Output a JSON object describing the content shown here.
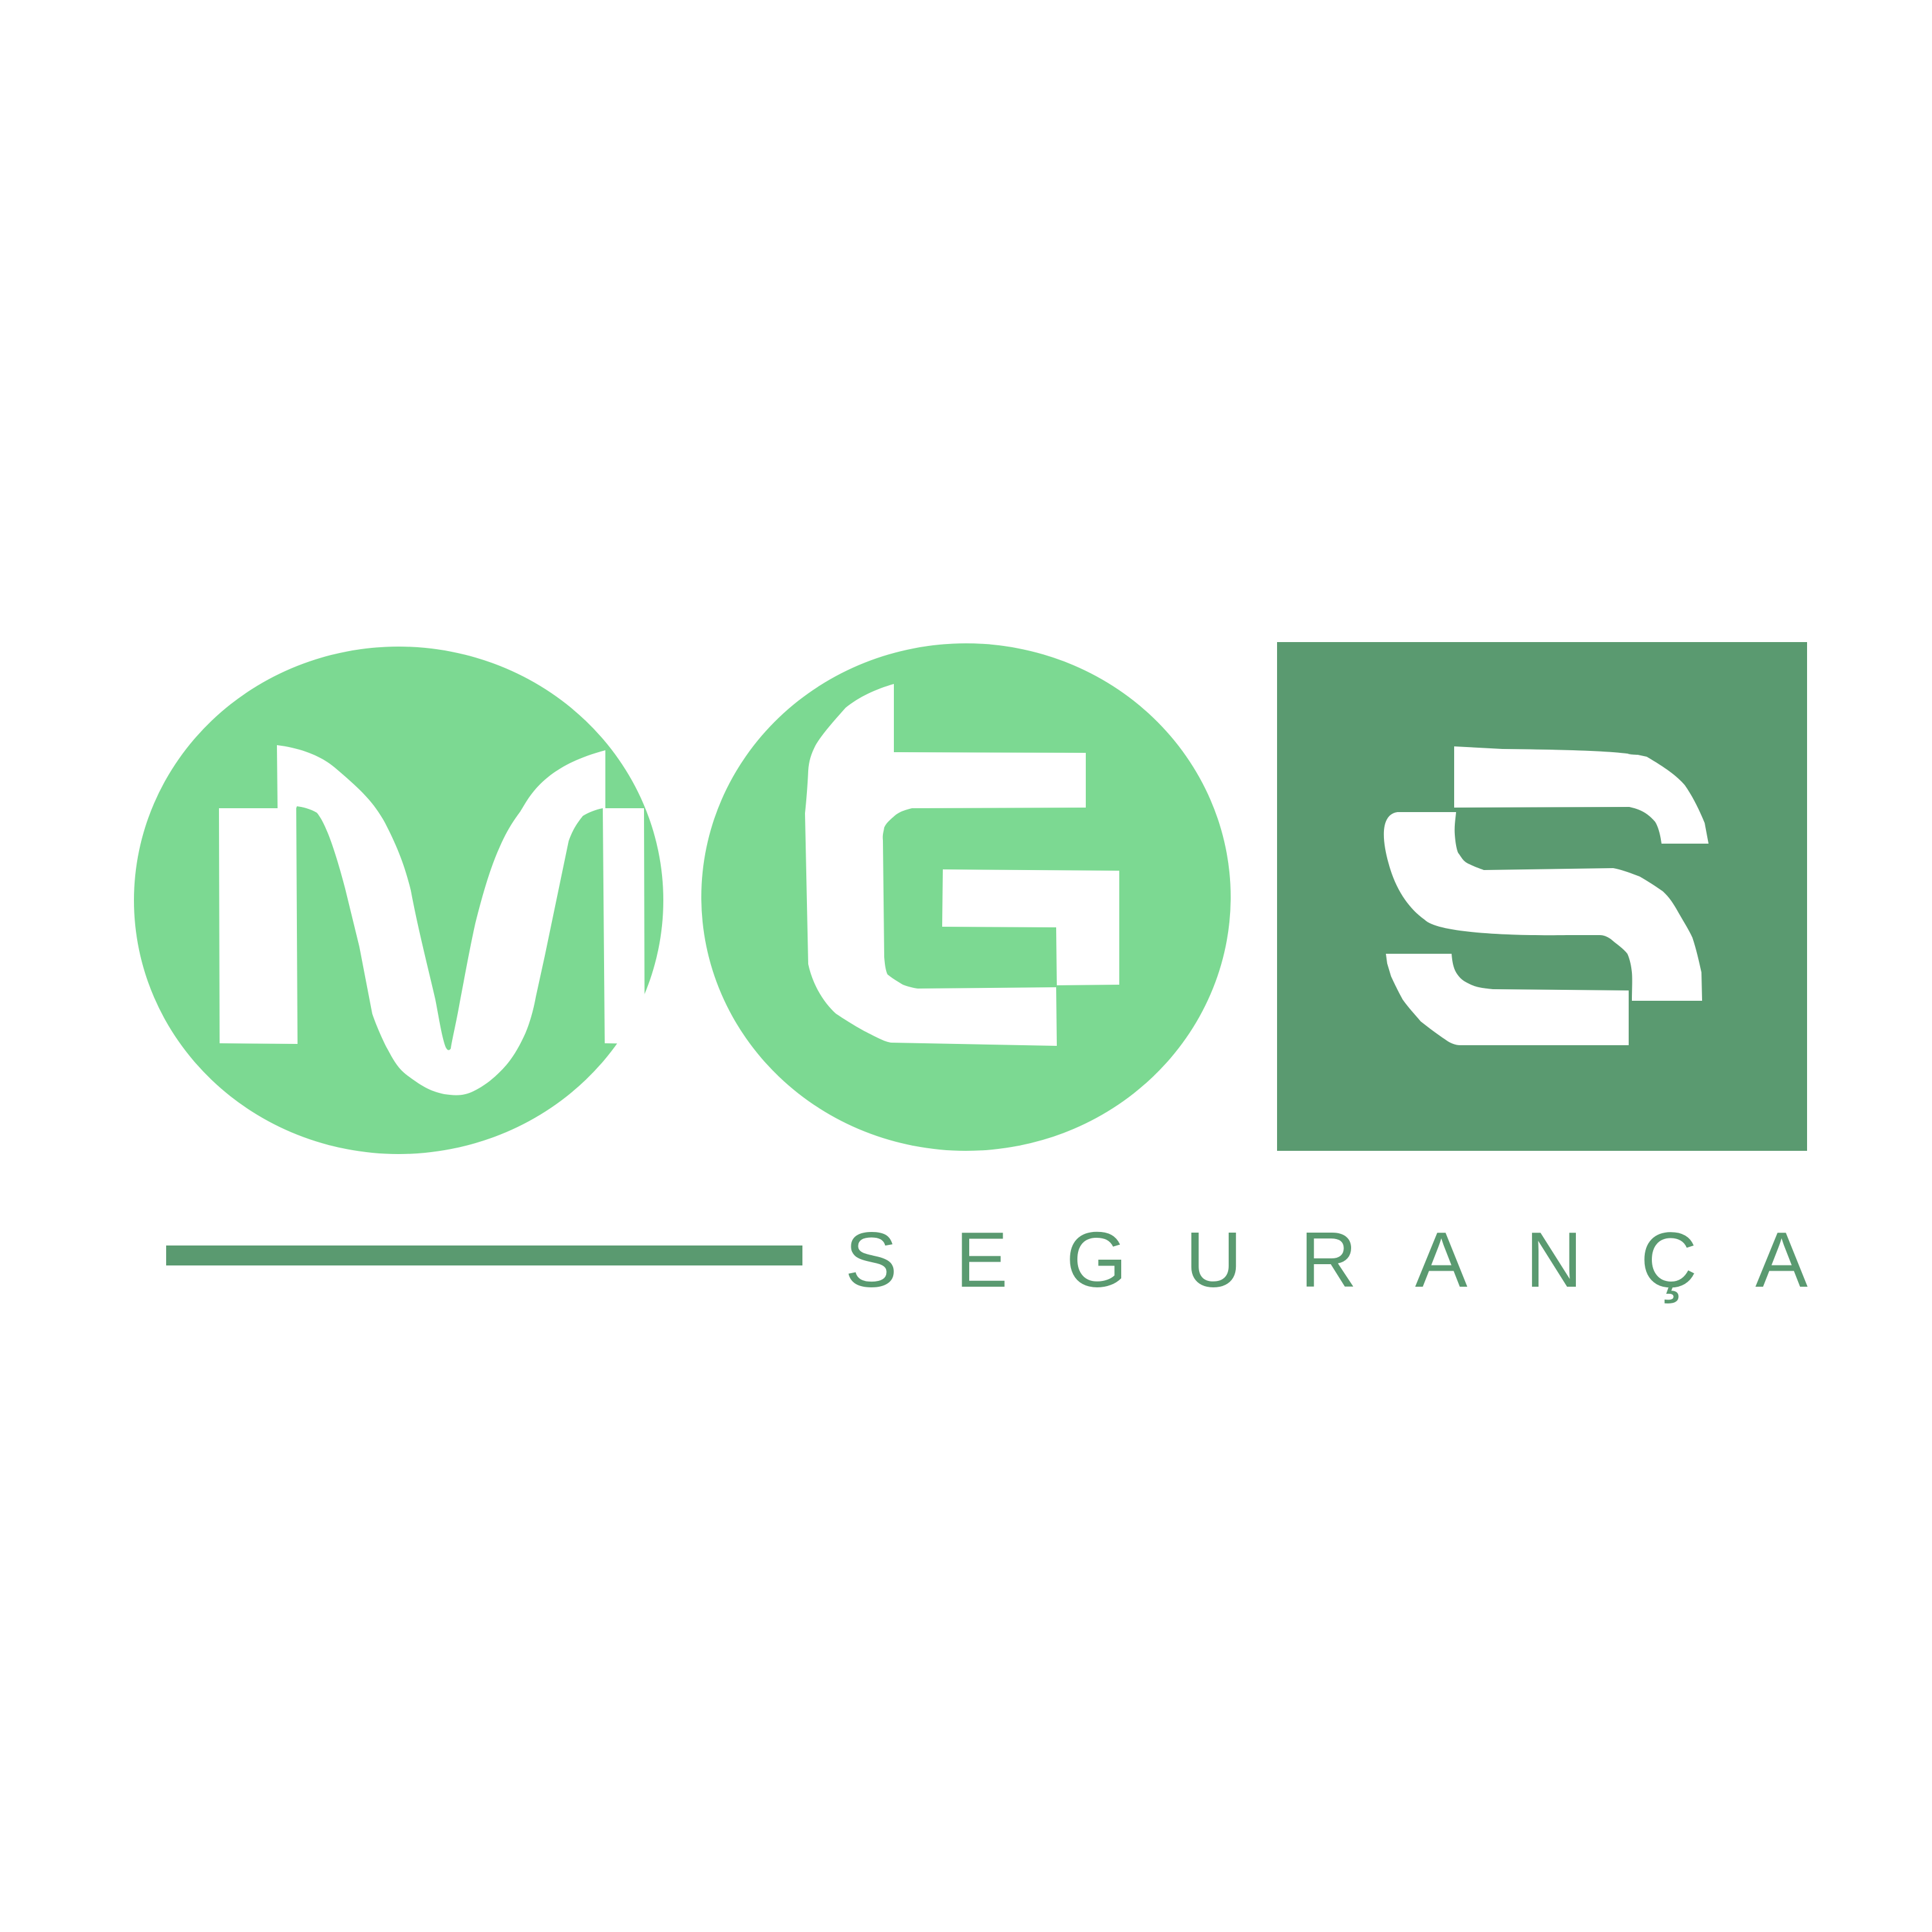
{
  "logo": {
    "letters": [
      "M",
      "G",
      "S"
    ],
    "tagline": "SEGURANÇA"
  },
  "colors": {
    "background": "#ffffff",
    "light_green": "#7cd992",
    "dark_green": "#5a9a70",
    "letter_fill": "#ffffff"
  },
  "icons": [
    "m-letter-icon",
    "g-letter-icon",
    "s-letter-icon"
  ]
}
